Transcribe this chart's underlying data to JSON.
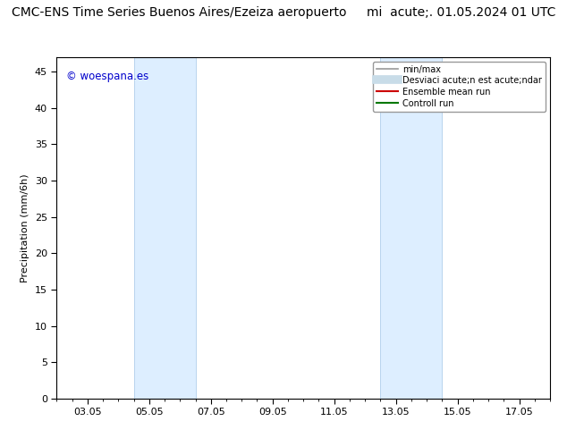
{
  "title_left": "CMC-ENS Time Series Buenos Aires/Ezeiza aeropuerto",
  "title_right": "mi  acute;. 01.05.2024 01 UTC",
  "ylabel": "Precipitation (mm/6h)",
  "xlabel": "",
  "xtick_labels": [
    "03.05",
    "05.05",
    "07.05",
    "09.05",
    "11.05",
    "13.05",
    "15.05",
    "17.05"
  ],
  "xtick_positions": [
    2,
    4,
    6,
    8,
    10,
    12,
    14,
    16
  ],
  "ylim": [
    0,
    47
  ],
  "yticks": [
    0,
    5,
    10,
    15,
    20,
    25,
    30,
    35,
    40,
    45
  ],
  "background_color": "#ffffff",
  "plot_bg_color": "#ffffff",
  "shaded_regions": [
    {
      "x_start": 3.5,
      "x_end": 5.5,
      "color": "#ddeeff"
    },
    {
      "x_start": 11.5,
      "x_end": 13.5,
      "color": "#ddeeff"
    }
  ],
  "vertical_line_color": "#b8d4ee",
  "watermark_text": "© woespana.es",
  "watermark_color": "#0000cc",
  "legend_entries": [
    {
      "label": "min/max",
      "color": "#999999",
      "lw": 1.2,
      "linestyle": "-"
    },
    {
      "label": "Desviaci acute;n est acute;ndar",
      "color": "#c8dce8",
      "lw": 7,
      "linestyle": "-"
    },
    {
      "label": "Ensemble mean run",
      "color": "#cc0000",
      "lw": 1.5,
      "linestyle": "-"
    },
    {
      "label": "Controll run",
      "color": "#007700",
      "lw": 1.5,
      "linestyle": "-"
    }
  ],
  "title_fontsize": 10,
  "axis_fontsize": 8,
  "tick_fontsize": 8,
  "fig_bg_color": "#ffffff"
}
